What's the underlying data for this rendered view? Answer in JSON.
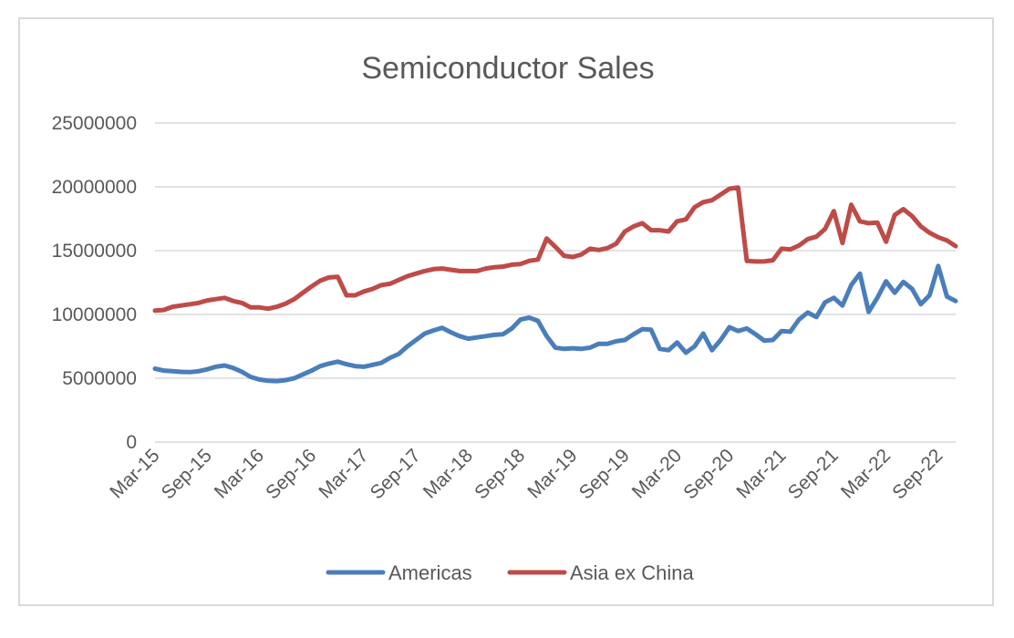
{
  "chart_data": {
    "type": "line",
    "title": "Semiconductor Sales",
    "xlabel": "",
    "ylabel": "",
    "ylim": [
      0,
      25000000
    ],
    "y_ticks": [
      "0",
      "5000000",
      "10000000",
      "15000000",
      "20000000",
      "25000000"
    ],
    "y_tick_values": [
      0,
      5000000,
      10000000,
      15000000,
      20000000,
      25000000
    ],
    "x_tick_labels": [
      "Mar-15",
      "Sep-15",
      "Mar-16",
      "Sep-16",
      "Mar-17",
      "Sep-17",
      "Mar-18",
      "Sep-18",
      "Mar-19",
      "Sep-19",
      "Mar-20",
      "Sep-20",
      "Mar-21",
      "Sep-21",
      "Mar-22",
      "Sep-22"
    ],
    "x": [
      "Mar-15",
      "Apr-15",
      "May-15",
      "Jun-15",
      "Jul-15",
      "Aug-15",
      "Sep-15",
      "Oct-15",
      "Nov-15",
      "Dec-15",
      "Jan-16",
      "Feb-16",
      "Mar-16",
      "Apr-16",
      "May-16",
      "Jun-16",
      "Jul-16",
      "Aug-16",
      "Sep-16",
      "Oct-16",
      "Nov-16",
      "Dec-16",
      "Jan-17",
      "Feb-17",
      "Mar-17",
      "Apr-17",
      "May-17",
      "Jun-17",
      "Jul-17",
      "Aug-17",
      "Sep-17",
      "Oct-17",
      "Nov-17",
      "Dec-17",
      "Jan-18",
      "Feb-18",
      "Mar-18",
      "Apr-18",
      "May-18",
      "Jun-18",
      "Jul-18",
      "Aug-18",
      "Sep-18",
      "Oct-18",
      "Nov-18",
      "Dec-18",
      "Jan-19",
      "Feb-19",
      "Mar-19",
      "Apr-19",
      "May-19",
      "Jun-19",
      "Jul-19",
      "Aug-19",
      "Sep-19",
      "Oct-19",
      "Nov-19",
      "Dec-19",
      "Jan-20",
      "Feb-20",
      "Mar-20",
      "Apr-20",
      "May-20",
      "Jun-20",
      "Jul-20",
      "Aug-20",
      "Sep-20",
      "Oct-20",
      "Nov-20",
      "Dec-20",
      "Jan-21",
      "Feb-21",
      "Mar-21",
      "Apr-21",
      "May-21",
      "Jun-21",
      "Jul-21",
      "Aug-21",
      "Sep-21",
      "Oct-21",
      "Nov-21",
      "Dec-21",
      "Jan-22",
      "Feb-22",
      "Mar-22",
      "Apr-22",
      "May-22",
      "Jun-22",
      "Jul-22",
      "Aug-22",
      "Sep-22",
      "Oct-22",
      "Nov-22"
    ],
    "series": [
      {
        "name": "Americas",
        "color": "#4a7ebb",
        "values": [
          5750000,
          5600000,
          5550000,
          5500000,
          5480000,
          5550000,
          5700000,
          5900000,
          6000000,
          5800000,
          5500000,
          5100000,
          4900000,
          4800000,
          4780000,
          4850000,
          5000000,
          5300000,
          5600000,
          5950000,
          6150000,
          6300000,
          6100000,
          5950000,
          5900000,
          6050000,
          6200000,
          6600000,
          6900000,
          7500000,
          8000000,
          8500000,
          8750000,
          8950000,
          8600000,
          8300000,
          8100000,
          8200000,
          8300000,
          8400000,
          8450000,
          8900000,
          9600000,
          9750000,
          9500000,
          8300000,
          7400000,
          7300000,
          7350000,
          7300000,
          7400000,
          7700000,
          7700000,
          7900000,
          8000000,
          8450000,
          8850000,
          8800000,
          7300000,
          7200000,
          7800000,
          7000000,
          7500000,
          8500000,
          7200000,
          8000000,
          9000000,
          8700000,
          8900000,
          8450000,
          7950000,
          8000000,
          8700000,
          8650000,
          9600000,
          10150000,
          9800000,
          10950000,
          11300000,
          10700000,
          12300000,
          13200000,
          10200000,
          11300000,
          12600000,
          11700000,
          12550000,
          12000000,
          10800000,
          11500000,
          13800000,
          11400000,
          11050000
        ]
      },
      {
        "name": "Asia ex China",
        "color": "#be4b48",
        "values": [
          10300000,
          10350000,
          10600000,
          10700000,
          10800000,
          10900000,
          11100000,
          11200000,
          11300000,
          11050000,
          10900000,
          10550000,
          10550000,
          10450000,
          10600000,
          10850000,
          11200000,
          11700000,
          12200000,
          12650000,
          12900000,
          12950000,
          11500000,
          11500000,
          11800000,
          12000000,
          12300000,
          12400000,
          12700000,
          13000000,
          13200000,
          13400000,
          13550000,
          13600000,
          13500000,
          13400000,
          13400000,
          13400000,
          13600000,
          13700000,
          13750000,
          13900000,
          13950000,
          14200000,
          14300000,
          15950000,
          15300000,
          14600000,
          14500000,
          14700000,
          15150000,
          15050000,
          15200000,
          15550000,
          16500000,
          16900000,
          17150000,
          16600000,
          16600000,
          16500000,
          17300000,
          17450000,
          18400000,
          18800000,
          18950000,
          19400000,
          19850000,
          19950000,
          14200000,
          14150000,
          14150000,
          14250000,
          15150000,
          15100000,
          15400000,
          15900000,
          16100000,
          16700000,
          18100000,
          15600000,
          18600000,
          17300000,
          17150000,
          17200000,
          15700000,
          17800000,
          18250000,
          17700000,
          16900000,
          16400000,
          16050000,
          15800000,
          15350000
        ]
      }
    ],
    "legend": "bottom",
    "grid": true
  }
}
